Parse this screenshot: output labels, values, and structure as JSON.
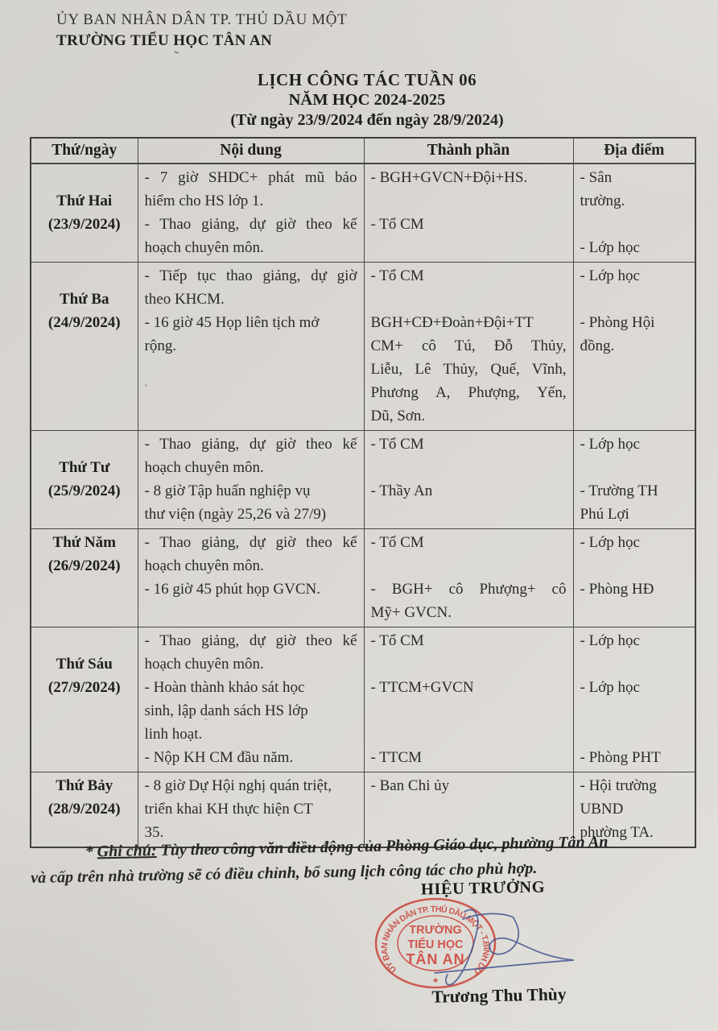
{
  "header": {
    "org_line1": "ỦY BAN NHÂN DÂN TP. THỦ DẦU MỘT",
    "org_line2": "TRƯỜNG TIỂU HỌC TÂN AN"
  },
  "title": {
    "line1": "LỊCH CÔNG TÁC TUẦN 06",
    "line2": "NĂM HỌC 2024-2025",
    "line3": "(Từ ngày 23/9/2024 đến ngày 28/9/2024)"
  },
  "table": {
    "headers": [
      "Thứ/ngày",
      "Nội dung",
      "Thành phần",
      "Địa điểm"
    ],
    "rows": [
      {
        "day": [
          "",
          "Thứ Hai",
          "(23/9/2024)",
          ""
        ],
        "noi_dung": [
          "- 7 giờ SHDC+ phát mũ bảo",
          "hiểm cho HS lớp 1.",
          "- Thao giảng, dự giờ theo kế",
          "hoạch chuyên môn."
        ],
        "thanh_phan": [
          "- BGH+GVCN+Đội+HS.",
          "",
          "- Tổ CM",
          ""
        ],
        "dia_diem": [
          "- Sân",
          "trường.",
          "",
          "- Lớp học"
        ]
      },
      {
        "day": [
          "",
          "Thứ Ba",
          "(24/9/2024)",
          "",
          "",
          "",
          ""
        ],
        "noi_dung": [
          "- Tiếp tục thao giảng, dự giờ",
          "theo KHCM.",
          "- 16 giờ 45 Họp liên tịch mở",
          "rộng.",
          "",
          "",
          ""
        ],
        "thanh_phan": [
          "- Tổ CM",
          "",
          "BGH+CĐ+Đoàn+Đội+TT",
          "CM+ cô Tú, Đỗ Thủy,",
          "Liễu, Lê Thủy, Quế, Vĩnh,",
          "Phương A, Phượng, Yến,",
          "Dũ, Sơn."
        ],
        "dia_diem": [
          "- Lớp học",
          "",
          "- Phòng Hội",
          "đồng.",
          "",
          "",
          ""
        ]
      },
      {
        "day": [
          "",
          "Thứ Tư",
          "(25/9/2024)",
          ""
        ],
        "noi_dung": [
          "- Thao giảng, dự giờ theo kế",
          "hoạch chuyên môn.",
          "- 8 giờ Tập huấn nghiệp vụ",
          "thư viện (ngày 25,26 và 27/9)"
        ],
        "thanh_phan": [
          "- Tổ CM",
          "",
          "- Thầy An",
          ""
        ],
        "dia_diem": [
          "- Lớp học",
          "",
          "- Trường TH",
          "Phú Lợi"
        ]
      },
      {
        "day": [
          "Thứ Năm",
          "(26/9/2024)",
          "",
          ""
        ],
        "noi_dung": [
          "- Thao giảng, dự giờ theo kế",
          "hoạch chuyên môn.",
          "- 16 giờ 45 phút họp GVCN.",
          ""
        ],
        "thanh_phan": [
          "- Tổ CM",
          "",
          "- BGH+ cô Phượng+ cô",
          "Mỹ+ GVCN."
        ],
        "dia_diem": [
          "- Lớp học",
          "",
          "- Phòng HĐ",
          ""
        ]
      },
      {
        "day": [
          "",
          "Thứ Sáu",
          "(27/9/2024)",
          "",
          "",
          ""
        ],
        "noi_dung": [
          "- Thao giảng, dự giờ theo kế",
          "hoạch chuyên môn.",
          "- Hoàn thành khảo sát học",
          "sinh, lập danh sách HS lớp",
          "linh hoạt.",
          "- Nộp KH CM đầu năm."
        ],
        "thanh_phan": [
          "- Tổ CM",
          "",
          "- TTCM+GVCN",
          "",
          "",
          "- TTCM"
        ],
        "dia_diem": [
          "- Lớp học",
          "",
          "- Lớp học",
          "",
          "",
          "- Phòng PHT"
        ]
      },
      {
        "day": [
          "Thứ Bảy",
          "(28/9/2024)",
          ""
        ],
        "noi_dung": [
          "- 8 giờ Dự Hội nghị quán triệt,",
          "triển khai KH thực hiện CT",
          "35."
        ],
        "thanh_phan": [
          "- Ban Chi ủy",
          "",
          ""
        ],
        "dia_diem": [
          "- Hội trường",
          "UBND",
          "phường TA."
        ]
      }
    ]
  },
  "note": {
    "prefix": "*",
    "label": "Ghi chú:",
    "line1_rest": "Tùy theo công văn điều động của Phòng Giáo dục, phường Tân An",
    "line2": "và cấp trên nhà trường sẽ có điều chỉnh, bổ sung lịch công tác cho phù hợp."
  },
  "signature": {
    "title": "HIỆU TRƯỞNG",
    "name": "Trương Thu Thùy"
  },
  "stamp": {
    "ring_text": "ỦY BAN NHÂN DÂN TP. THỦ DẦU MỘT - T.BÌNH DƯƠNG",
    "center_line1": "TRƯỜNG",
    "center_line2": "TIỂU HỌC",
    "center_line3": "TÂN AN",
    "star": "★"
  },
  "colors": {
    "paper": "#dad7d2",
    "ink": "#2b2b2b",
    "stamp_red": "#c94a40",
    "signature_blue": "#3f5390"
  }
}
